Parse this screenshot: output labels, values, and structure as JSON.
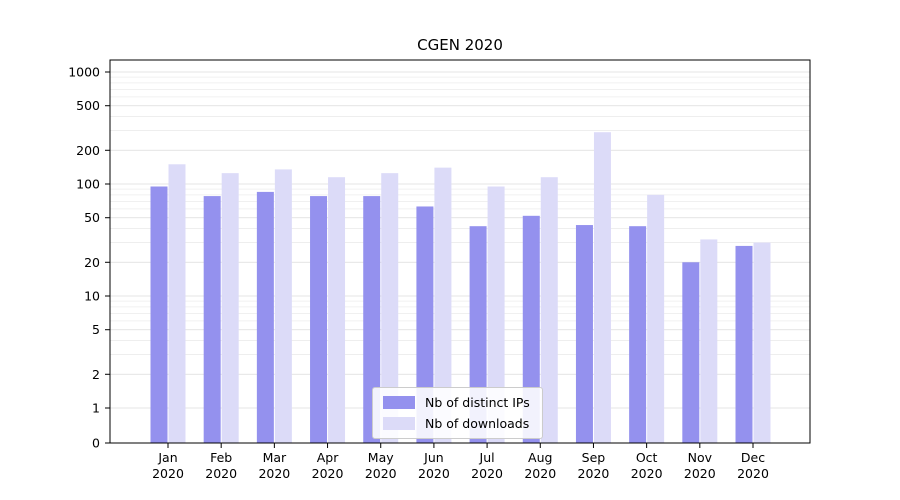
{
  "chart_data": {
    "type": "bar",
    "title": "CGEN 2020",
    "categories": [
      "Jan 2020",
      "Feb 2020",
      "Mar 2020",
      "Apr 2020",
      "May 2020",
      "Jun 2020",
      "Jul 2020",
      "Aug 2020",
      "Sep 2020",
      "Oct 2020",
      "Nov 2020",
      "Dec 2020"
    ],
    "series": [
      {
        "name": "Nb of distinct IPs",
        "color": "#9491ee",
        "values": [
          95,
          78,
          85,
          78,
          78,
          63,
          42,
          52,
          43,
          42,
          20,
          28
        ]
      },
      {
        "name": "Nb of downloads",
        "color": "#dcdbf8",
        "values": [
          150,
          125,
          135,
          115,
          125,
          140,
          95,
          115,
          290,
          80,
          32,
          30
        ]
      }
    ],
    "yscale": "symlog",
    "yticks": [
      0,
      1,
      2,
      5,
      10,
      20,
      50,
      100,
      200,
      500,
      1000
    ],
    "ylim": [
      0,
      1400
    ],
    "xlabel": "",
    "ylabel": "",
    "grid": true,
    "legend_position": "lower center inside"
  },
  "colors": {
    "grid_major": "#dcdcdc",
    "grid_minor": "#ececec",
    "spine": "#000000",
    "background": "#ffffff"
  }
}
